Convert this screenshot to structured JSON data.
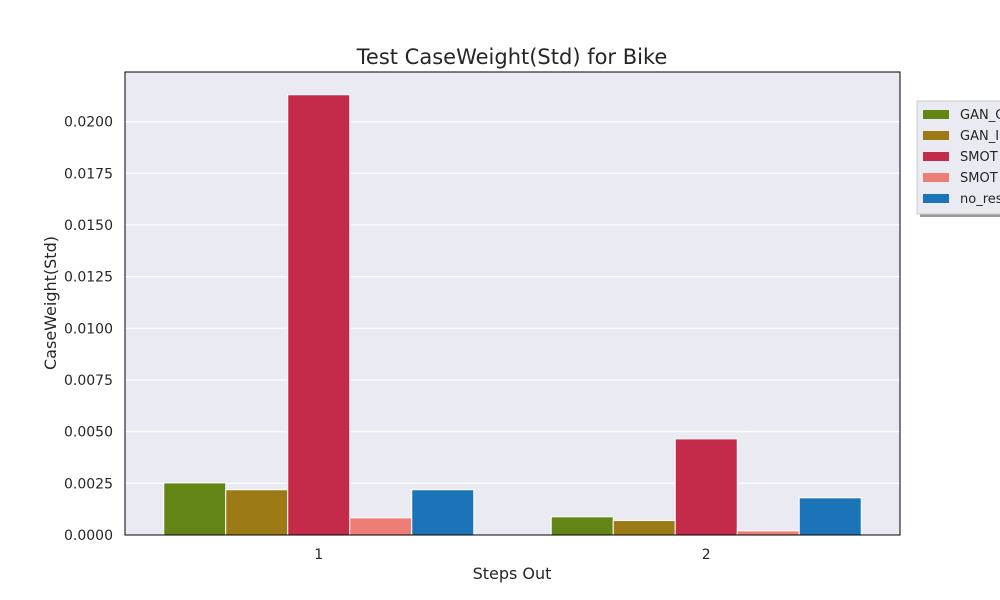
{
  "chart_data": {
    "type": "bar",
    "title": "Test CaseWeight(Std) for Bike",
    "xlabel": "Steps Out",
    "ylabel": "CaseWeight(Std)",
    "categories": [
      "1",
      "2"
    ],
    "ylim": [
      0,
      0.0224
    ],
    "yticks": [
      "0.0000",
      "0.0025",
      "0.0050",
      "0.0075",
      "0.0100",
      "0.0125",
      "0.0150",
      "0.0175",
      "0.0200"
    ],
    "grid": true,
    "legend_position": "right, partially clipped",
    "series": [
      {
        "name": "GAN_C",
        "color": "#628516",
        "values": [
          0.00252,
          0.00088
        ]
      },
      {
        "name": "GAN_I",
        "color": "#9c7b17",
        "values": [
          0.00219,
          0.0007
        ]
      },
      {
        "name": "SMOT",
        "color": "#c42b4b",
        "values": [
          0.0213,
          0.00465
        ]
      },
      {
        "name": "SMOT",
        "color": "#ed7e75",
        "values": [
          0.00083,
          0.0002
        ]
      },
      {
        "name": "no_res",
        "color": "#1b74b8",
        "values": [
          0.00219,
          0.0018
        ]
      }
    ]
  }
}
